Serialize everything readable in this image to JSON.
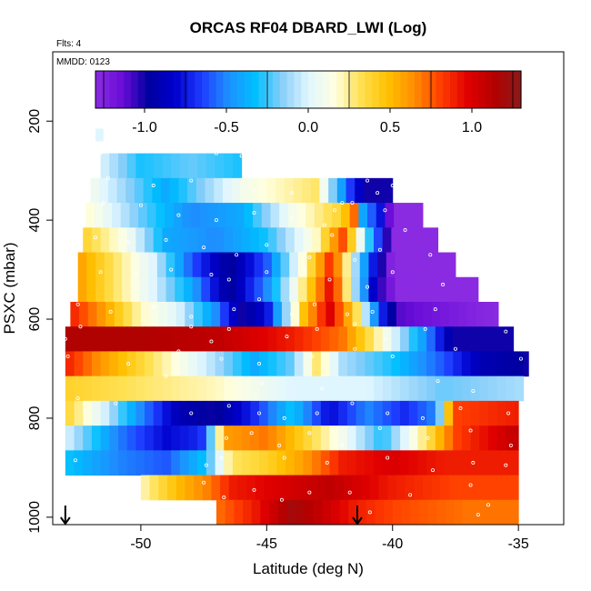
{
  "chart_data": {
    "type": "heatmap",
    "title": "ORCAS RF04 DBARD_LWI (Log)",
    "flts_label": "Flts: 4",
    "mmdd_label": "MMDD: 0123",
    "xlabel": "Latitude (deg N)",
    "ylabel": "PSXC (mbar)",
    "xlim": [
      -53.5,
      -33.2
    ],
    "ylim": [
      1015,
      60
    ],
    "x_ticks": [
      -50,
      -45,
      -40,
      -35
    ],
    "y_ticks": [
      200,
      400,
      600,
      800,
      1000
    ],
    "colorbar": {
      "min": -1.3,
      "max": 1.3,
      "ticks": [
        -1.0,
        -0.5,
        0.0,
        0.5,
        1.0
      ],
      "tick_labels": [
        "-1.0",
        "-0.5",
        "0.0",
        "0.5",
        "1.0"
      ],
      "colors": [
        "#8a2be2",
        "#6a0dd8",
        "#0000a0",
        "#0000cd",
        "#1e3cff",
        "#1e90ff",
        "#00bfff",
        "#87cefa",
        "#e0f6ff",
        "#ffffe0",
        "#ffe050",
        "#ffc000",
        "#ff8c00",
        "#ff3c00",
        "#e00000",
        "#b40000",
        "#8b1a1a"
      ]
    },
    "arrow_latitudes": [
      -53.0,
      -41.4
    ],
    "rows": [
      {
        "p": 215,
        "h": 25,
        "x1": -51.8,
        "x2": -51.5,
        "pts": [
          [
            -51.8,
            0.0
          ]
        ]
      },
      {
        "p": 265,
        "h": 50,
        "x1": -51.6,
        "x2": -46.0,
        "pts": [
          [
            -51.6,
            0.0
          ],
          [
            -50,
            -0.3
          ],
          [
            -48,
            -0.2
          ],
          [
            -46.0,
            -0.3
          ]
        ]
      },
      {
        "p": 315,
        "h": 50,
        "x1": -52.0,
        "x2": -40.0,
        "pts": [
          [
            -52.0,
            0.1
          ],
          [
            -49,
            -0.4
          ],
          [
            -46,
            0.1
          ],
          [
            -43,
            0.3
          ],
          [
            -41.8,
            -0.6
          ],
          [
            -41,
            -1.0
          ],
          [
            -40.0,
            -1.0
          ]
        ]
      },
      {
        "p": 365,
        "h": 50,
        "x1": -52.2,
        "x2": -38.8,
        "pts": [
          [
            -52.2,
            0.2
          ],
          [
            -50,
            -0.2
          ],
          [
            -48,
            -0.5
          ],
          [
            -46,
            -0.4
          ],
          [
            -44,
            0.1
          ],
          [
            -42,
            0.4
          ],
          [
            -41.4,
            0.8
          ],
          [
            -41.2,
            -0.4
          ],
          [
            -40.4,
            -0.8
          ],
          [
            -40,
            -1.3
          ],
          [
            -38.8,
            -1.3
          ]
        ]
      },
      {
        "p": 415,
        "h": 50,
        "x1": -52.3,
        "x2": -38.2,
        "pts": [
          [
            -52.3,
            0.4
          ],
          [
            -50.5,
            0.1
          ],
          [
            -49,
            -0.4
          ],
          [
            -47,
            -0.5
          ],
          [
            -45,
            -0.3
          ],
          [
            -43,
            0.2
          ],
          [
            -42,
            0.8
          ],
          [
            -41.4,
            0.2
          ],
          [
            -40.6,
            -0.6
          ],
          [
            -40,
            -1.3
          ],
          [
            -38.2,
            -1.3
          ]
        ]
      },
      {
        "p": 465,
        "h": 50,
        "x1": -52.5,
        "x2": -37.5,
        "pts": [
          [
            -52.5,
            0.6
          ],
          [
            -51,
            0.3
          ],
          [
            -49.5,
            0.0
          ],
          [
            -48,
            -0.6
          ],
          [
            -46.5,
            -1.0
          ],
          [
            -45,
            -0.6
          ],
          [
            -43.5,
            0.2
          ],
          [
            -42.4,
            0.9
          ],
          [
            -41.6,
            0.0
          ],
          [
            -40.6,
            -0.9
          ],
          [
            -40,
            -1.3
          ],
          [
            -37.5,
            -1.3
          ]
        ]
      },
      {
        "p": 515,
        "h": 50,
        "x1": -52.5,
        "x2": -36.6,
        "pts": [
          [
            -52.5,
            0.6
          ],
          [
            -51,
            0.3
          ],
          [
            -49.5,
            0.0
          ],
          [
            -48,
            -0.4
          ],
          [
            -46.5,
            -1.0
          ],
          [
            -45,
            -0.5
          ],
          [
            -43.5,
            0.3
          ],
          [
            -42.4,
            1.0
          ],
          [
            -41.6,
            0.0
          ],
          [
            -40.6,
            -1.0
          ],
          [
            -39.8,
            -1.3
          ],
          [
            -36.6,
            -1.3
          ]
        ]
      },
      {
        "p": 565,
        "h": 50,
        "x1": -52.8,
        "x2": -35.8,
        "pts": [
          [
            -52.8,
            0.9
          ],
          [
            -51.5,
            0.6
          ],
          [
            -50,
            0.2
          ],
          [
            -48.5,
            0.0
          ],
          [
            -47,
            -0.5
          ],
          [
            -46,
            -1.0
          ],
          [
            -45,
            -0.8
          ],
          [
            -43.5,
            0.5
          ],
          [
            -42.5,
            1.0
          ],
          [
            -41.5,
            0.4
          ],
          [
            -40.6,
            -0.6
          ],
          [
            -39.8,
            -1.1
          ],
          [
            -38,
            -1.2
          ],
          [
            -35.8,
            -1.3
          ]
        ]
      },
      {
        "p": 615,
        "h": 50,
        "x1": -53.0,
        "x2": -35.2,
        "pts": [
          [
            -53.0,
            1.15
          ],
          [
            -50,
            1.15
          ],
          [
            -47,
            1.1
          ],
          [
            -44,
            0.9
          ],
          [
            -42,
            0.7
          ],
          [
            -40.5,
            0.2
          ],
          [
            -38.6,
            -0.5
          ],
          [
            -37.6,
            -1.0
          ],
          [
            -35.2,
            -1.0
          ]
        ]
      },
      {
        "p": 665,
        "h": 50,
        "x1": -53.0,
        "x2": -34.6,
        "pts": [
          [
            -53.0,
            0.9
          ],
          [
            -51.5,
            0.6
          ],
          [
            -49.5,
            0.3
          ],
          [
            -47,
            -0.1
          ],
          [
            -45.5,
            -0.4
          ],
          [
            -44,
            -0.2
          ],
          [
            -43,
            0.3
          ],
          [
            -42,
            -0.1
          ],
          [
            -40,
            -0.3
          ],
          [
            -38,
            -0.6
          ],
          [
            -36.5,
            -0.9
          ],
          [
            -34.6,
            -1.0
          ]
        ]
      },
      {
        "p": 715,
        "h": 50,
        "x1": -53.0,
        "x2": -34.8,
        "pts": [
          [
            -53.0,
            0.4
          ],
          [
            -50,
            0.3
          ],
          [
            -47,
            0.2
          ],
          [
            -44,
            0.0
          ],
          [
            -41,
            0.0
          ],
          [
            -38,
            -0.2
          ],
          [
            -34.8,
            -0.1
          ]
        ]
      },
      {
        "p": 765,
        "h": 50,
        "x1": -53.0,
        "x2": -35.0,
        "pts": [
          [
            -53.0,
            0.4
          ],
          [
            -51.5,
            0.0
          ],
          [
            -50,
            -0.5
          ],
          [
            -48.5,
            -0.9
          ],
          [
            -47,
            -1.0
          ],
          [
            -45.5,
            -0.7
          ],
          [
            -44,
            -0.3
          ],
          [
            -42.5,
            -0.8
          ],
          [
            -41,
            -0.5
          ],
          [
            -39.5,
            -0.7
          ],
          [
            -38.3,
            -0.5
          ],
          [
            -37.6,
            0.8
          ],
          [
            -35.0,
            0.9
          ]
        ]
      },
      {
        "p": 815,
        "h": 50,
        "x1": -53.0,
        "x2": -35.0,
        "pts": [
          [
            -53.0,
            0.0
          ],
          [
            -51,
            -0.5
          ],
          [
            -49,
            -0.8
          ],
          [
            -47.6,
            -0.7
          ],
          [
            -46.6,
            0.6
          ],
          [
            -45,
            0.7
          ],
          [
            -43.5,
            0.4
          ],
          [
            -42,
            0.1
          ],
          [
            -40.4,
            -0.3
          ],
          [
            -38.4,
            0.4
          ],
          [
            -37.5,
            0.8
          ],
          [
            -35.0,
            1.1
          ]
        ]
      },
      {
        "p": 865,
        "h": 50,
        "x1": -53.0,
        "x2": -35.0,
        "pts": [
          [
            -53.0,
            -0.3
          ],
          [
            -51,
            -0.5
          ],
          [
            -49,
            -0.6
          ],
          [
            -47.4,
            -0.3
          ],
          [
            -46.4,
            0.3
          ],
          [
            -45,
            0.4
          ],
          [
            -43.5,
            0.6
          ],
          [
            -42,
            0.9
          ],
          [
            -40,
            1.0
          ],
          [
            -38,
            0.9
          ],
          [
            -35.0,
            0.9
          ]
        ]
      },
      {
        "p": 915,
        "h": 50,
        "x1": -50.0,
        "x2": -35.0,
        "pts": [
          [
            -50.0,
            0.2
          ],
          [
            -48.5,
            0.5
          ],
          [
            -47.2,
            0.7
          ],
          [
            -46.4,
            0.9
          ],
          [
            -44.5,
            1.0
          ],
          [
            -42.5,
            1.1
          ],
          [
            -40,
            0.9
          ],
          [
            -37.5,
            0.8
          ],
          [
            -35.0,
            0.8
          ]
        ]
      },
      {
        "p": 965,
        "h": 50,
        "x1": -47.0,
        "x2": -35.0,
        "pts": [
          [
            -47.0,
            0.7
          ],
          [
            -45.5,
            0.9
          ],
          [
            -44,
            1.2
          ],
          [
            -43,
            1.1
          ],
          [
            -41.5,
            0.9
          ],
          [
            -40,
            0.8
          ],
          [
            -37,
            0.7
          ],
          [
            -35.0,
            0.7
          ]
        ]
      }
    ],
    "markers": [
      [
        -51.6,
        265
      ],
      [
        -47.0,
        265
      ],
      [
        -46.0,
        270
      ],
      [
        -51.3,
        315
      ],
      [
        -49.5,
        330
      ],
      [
        -48.0,
        320
      ],
      [
        -45.5,
        340
      ],
      [
        -44.0,
        345
      ],
      [
        -43.0,
        310
      ],
      [
        -42.3,
        380
      ],
      [
        -41.6,
        365
      ],
      [
        -41.0,
        320
      ],
      [
        -40.6,
        345
      ],
      [
        -40.0,
        330
      ],
      [
        -51.5,
        365
      ],
      [
        -50.0,
        370
      ],
      [
        -48.5,
        390
      ],
      [
        -47.0,
        400
      ],
      [
        -45.5,
        385
      ],
      [
        -44.0,
        395
      ],
      [
        -42.7,
        410
      ],
      [
        -42.0,
        365
      ],
      [
        -41.2,
        420
      ],
      [
        -40.3,
        380
      ],
      [
        -39.5,
        420
      ],
      [
        -51.8,
        435
      ],
      [
        -50.5,
        445
      ],
      [
        -49.0,
        440
      ],
      [
        -47.5,
        455
      ],
      [
        -46.2,
        470
      ],
      [
        -45.0,
        450
      ],
      [
        -43.3,
        475
      ],
      [
        -42.4,
        430
      ],
      [
        -41.5,
        480
      ],
      [
        -40.5,
        460
      ],
      [
        -38.5,
        470
      ],
      [
        -51.6,
        505
      ],
      [
        -50.2,
        510
      ],
      [
        -48.8,
        500
      ],
      [
        -47.2,
        510
      ],
      [
        -46.5,
        520
      ],
      [
        -45.0,
        505
      ],
      [
        -43.5,
        500
      ],
      [
        -42.5,
        520
      ],
      [
        -41.0,
        535
      ],
      [
        -40.0,
        505
      ],
      [
        -38.0,
        530
      ],
      [
        -52.5,
        570
      ],
      [
        -51.2,
        585
      ],
      [
        -49.5,
        575
      ],
      [
        -48.0,
        595
      ],
      [
        -46.3,
        580
      ],
      [
        -45.3,
        560
      ],
      [
        -44.0,
        590
      ],
      [
        -43.1,
        570
      ],
      [
        -41.8,
        590
      ],
      [
        -40.8,
        585
      ],
      [
        -38.3,
        580
      ],
      [
        -53.0,
        640
      ],
      [
        -52.4,
        615
      ],
      [
        -48.0,
        615
      ],
      [
        -47.2,
        645
      ],
      [
        -46.5,
        620
      ],
      [
        -44.2,
        635
      ],
      [
        -43.0,
        620
      ],
      [
        -41.5,
        610
      ],
      [
        -40.3,
        640
      ],
      [
        -38.7,
        620
      ],
      [
        -35.5,
        625
      ],
      [
        -52.9,
        675
      ],
      [
        -50.5,
        690
      ],
      [
        -48.5,
        665
      ],
      [
        -46.8,
        680
      ],
      [
        -45.3,
        690
      ],
      [
        -43.2,
        675
      ],
      [
        -41.5,
        660
      ],
      [
        -40.0,
        675
      ],
      [
        -37.5,
        660
      ],
      [
        -34.9,
        680
      ],
      [
        -49.0,
        715
      ],
      [
        -45.2,
        730
      ],
      [
        -42.8,
        740
      ],
      [
        -38.2,
        725
      ],
      [
        -36.8,
        745
      ],
      [
        -52.5,
        760
      ],
      [
        -51.0,
        770
      ],
      [
        -48.0,
        790
      ],
      [
        -46.5,
        775
      ],
      [
        -45.3,
        790
      ],
      [
        -44.3,
        800
      ],
      [
        -43.0,
        790
      ],
      [
        -41.6,
        770
      ],
      [
        -40.2,
        790
      ],
      [
        -38.8,
        800
      ],
      [
        -37.3,
        780
      ],
      [
        -35.4,
        790
      ],
      [
        -46.6,
        840
      ],
      [
        -45.6,
        830
      ],
      [
        -44.5,
        855
      ],
      [
        -43.3,
        830
      ],
      [
        -42.0,
        855
      ],
      [
        -40.5,
        820
      ],
      [
        -38.6,
        840
      ],
      [
        -36.9,
        825
      ],
      [
        -35.3,
        855
      ],
      [
        -52.6,
        885
      ],
      [
        -47.4,
        895
      ],
      [
        -46.8,
        880
      ],
      [
        -44.3,
        880
      ],
      [
        -42.6,
        890
      ],
      [
        -40.2,
        880
      ],
      [
        -38.4,
        905
      ],
      [
        -36.8,
        890
      ],
      [
        -35.5,
        895
      ],
      [
        -47.5,
        930
      ],
      [
        -46.7,
        960
      ],
      [
        -45.5,
        945
      ],
      [
        -44.4,
        965
      ],
      [
        -43.3,
        950
      ],
      [
        -41.7,
        950
      ],
      [
        -40.9,
        990
      ],
      [
        -39.3,
        955
      ],
      [
        -36.9,
        935
      ],
      [
        -36.2,
        975
      ],
      [
        -36.6,
        995
      ]
    ]
  }
}
